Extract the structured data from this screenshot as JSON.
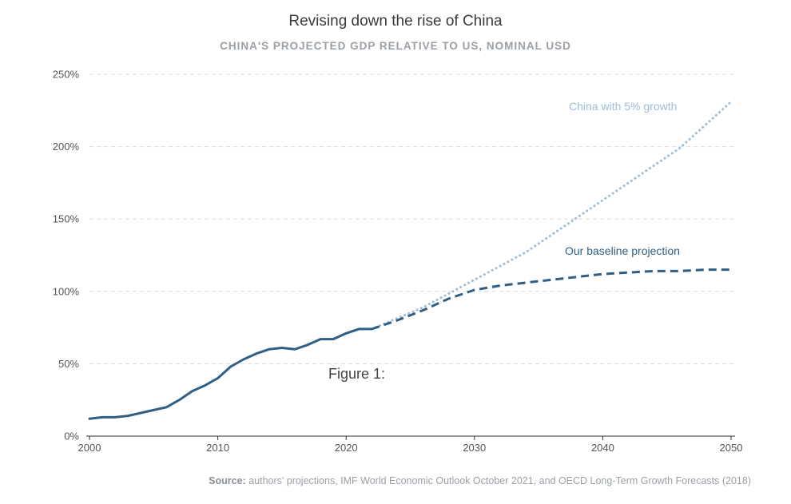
{
  "chart_data": {
    "type": "line",
    "title": "Revising down the rise of China",
    "subtitle": "CHINA'S PROJECTED GDP RELATIVE TO US, NOMINAL USD",
    "caption": "Figure 1:",
    "source_label": "Source:",
    "source_text": "authors' projections, IMF World Economic Outlook October 2021, and OECD Long-Term Growth Forecasts (2018)",
    "xlim": [
      2000,
      2050
    ],
    "ylim": [
      0,
      250
    ],
    "x_ticks": [
      2000,
      2010,
      2020,
      2030,
      2040,
      2050
    ],
    "y_ticks": [
      0,
      50,
      100,
      150,
      200,
      250
    ],
    "y_tick_labels": [
      "0%",
      "50%",
      "100%",
      "150%",
      "200%",
      "250%"
    ],
    "grid": true,
    "series": [
      {
        "name": "China with 5% growth",
        "style": "dotted",
        "color": "#9dbcd6",
        "x": [
          2022,
          2026,
          2030,
          2034,
          2038,
          2042,
          2046,
          2050
        ],
        "y": [
          74,
          89,
          108,
          127,
          151,
          175,
          199,
          231
        ]
      },
      {
        "name": "Our baseline projection",
        "style": "dashed",
        "color": "#2f5f84",
        "x": [
          2022,
          2024,
          2026,
          2028,
          2030,
          2032,
          2034,
          2036,
          2038,
          2040,
          2042,
          2044,
          2046,
          2048,
          2050
        ],
        "y": [
          74,
          80,
          87,
          95,
          101,
          104,
          106,
          108,
          110,
          112,
          113,
          114,
          114,
          115,
          115
        ]
      },
      {
        "name": "",
        "style": "solid",
        "color": "#2f5f84",
        "x": [
          2000,
          2001,
          2002,
          2003,
          2004,
          2005,
          2006,
          2007,
          2008,
          2009,
          2010,
          2011,
          2012,
          2013,
          2014,
          2015,
          2016,
          2017,
          2018,
          2019,
          2020,
          2021,
          2022
        ],
        "y": [
          12,
          13,
          13,
          14,
          16,
          18,
          20,
          25,
          31,
          35,
          40,
          48,
          53,
          57,
          60,
          61,
          60,
          63,
          67,
          67,
          71,
          74,
          74
        ]
      }
    ]
  }
}
